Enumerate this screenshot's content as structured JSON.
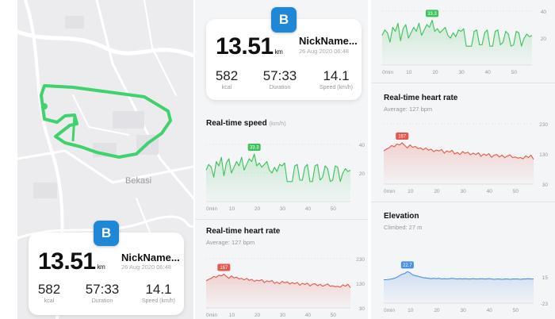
{
  "left": {
    "map_label": "Bekasi",
    "card": {
      "badge": "B",
      "distance": "13.51",
      "distance_unit": "km",
      "username": "NickName...",
      "date": "26 Aug 2020 06:48",
      "stats": [
        {
          "value": "582",
          "label": "kcal"
        },
        {
          "value": "57:33",
          "label": "Duration"
        },
        {
          "value": "14.1",
          "label": "Speed (km/h)"
        }
      ]
    },
    "heart_preview": {
      "title": "Real-time heart rate",
      "subtitle": "Average: 127 bpm"
    }
  },
  "middle": {
    "card": {
      "badge": "B",
      "distance": "13.51",
      "distance_unit": "km",
      "username": "NickName...",
      "date": "26 Aug 2020 06:48",
      "stats": [
        {
          "value": "582",
          "label": "kcal"
        },
        {
          "value": "57:33",
          "label": "Duration"
        },
        {
          "value": "14.1",
          "label": "Speed (km/h)"
        }
      ]
    },
    "speed": {
      "title": "Real-time speed",
      "unit": "(km/h)"
    },
    "heart": {
      "title": "Real-time heart rate",
      "subtitle": "Average: 127 bpm"
    }
  },
  "right": {
    "heart": {
      "title": "Real-time heart rate",
      "subtitle": "Average: 127 bpm"
    },
    "elevation": {
      "title": "Elevation",
      "subtitle": "Climbed: 27 m"
    }
  },
  "colors": {
    "speed": "#3cc25a",
    "heart": "#e5574a",
    "elevation": "#4a8fe0",
    "route": "#3fd36e",
    "badge": "#1f88d6"
  },
  "chart_data": [
    {
      "id": "speed",
      "type": "line",
      "title": "Real-time speed",
      "ylabel": "(km/h)",
      "x": [
        0,
        1,
        2,
        3,
        4,
        5,
        6,
        7,
        8,
        9,
        10,
        11,
        12,
        13,
        14,
        15,
        16,
        17,
        18,
        19,
        20,
        21,
        22,
        23,
        24,
        25,
        26,
        27,
        28,
        29,
        30,
        31,
        32,
        33,
        34,
        35,
        36,
        37,
        38,
        39,
        40,
        41,
        42,
        43,
        44,
        45,
        46,
        47,
        48,
        49,
        50,
        51,
        52,
        53,
        54,
        55,
        56,
        57
      ],
      "values": [
        22,
        26,
        24,
        17,
        28,
        25,
        31,
        18,
        27,
        30,
        20,
        24,
        28,
        25,
        31,
        22,
        26,
        30,
        28,
        33.3,
        25,
        27,
        24,
        26,
        28,
        22,
        20,
        24,
        21,
        26,
        25,
        27,
        14,
        14,
        14,
        25,
        26,
        15,
        15,
        24,
        26,
        14,
        14,
        25,
        26,
        15,
        17,
        25,
        23,
        14,
        15,
        25,
        24,
        14,
        20,
        23,
        21,
        22
      ],
      "peak_label": "33.3",
      "yticks": [
        40,
        20
      ],
      "ylim": [
        0,
        40
      ],
      "xticks": [
        "0min",
        "10",
        "20",
        "30",
        "40",
        "50"
      ],
      "grid": true
    },
    {
      "id": "heart",
      "type": "area",
      "title": "Real-time heart rate",
      "ylabel": "",
      "x": [
        0,
        1,
        2,
        3,
        4,
        5,
        6,
        7,
        8,
        9,
        10,
        11,
        12,
        13,
        14,
        15,
        16,
        17,
        18,
        19,
        20,
        21,
        22,
        23,
        24,
        25,
        26,
        27,
        28,
        29,
        30,
        31,
        32,
        33,
        34,
        35,
        36,
        37,
        38,
        39,
        40,
        41,
        42,
        43,
        44,
        45,
        46,
        47,
        48,
        49,
        50,
        51,
        52,
        53,
        54,
        55,
        56,
        57
      ],
      "values": [
        140,
        146,
        150,
        158,
        154,
        163,
        160,
        167,
        158,
        150,
        160,
        152,
        155,
        148,
        150,
        144,
        150,
        142,
        146,
        138,
        143,
        140,
        145,
        133,
        140,
        136,
        142,
        130,
        135,
        128,
        138,
        132,
        136,
        127,
        133,
        128,
        134,
        122,
        130,
        125,
        131,
        119,
        126,
        128,
        120,
        126,
        118,
        123,
        127,
        118,
        120,
        116,
        118,
        114,
        124,
        118,
        126,
        112
      ],
      "peak_label": "167",
      "yticks": [
        230,
        130,
        30
      ],
      "ylim": [
        30,
        230
      ],
      "xticks": [
        "0min",
        "10",
        "20",
        "30",
        "40",
        "50"
      ],
      "grid": true
    },
    {
      "id": "elevation",
      "type": "area",
      "title": "Elevation",
      "ylabel": "",
      "x": [
        0,
        1,
        2,
        3,
        4,
        5,
        6,
        7,
        8,
        9,
        10,
        11,
        12,
        13,
        14,
        15,
        16,
        17,
        18,
        19,
        20,
        21,
        22,
        23,
        24,
        25,
        26,
        27,
        28,
        29,
        30,
        31,
        32,
        33,
        34,
        35,
        36,
        37,
        38,
        39,
        40,
        41,
        42,
        43,
        44,
        45,
        46,
        47,
        48,
        49,
        50,
        51,
        52,
        53,
        54,
        55,
        56,
        57
      ],
      "values": [
        11,
        11,
        11.5,
        12,
        13,
        14.5,
        17,
        19,
        20,
        22.7,
        21,
        18,
        17,
        16,
        15,
        14,
        13.5,
        13,
        12.5,
        13,
        12.5,
        13,
        12,
        12.5,
        12,
        12.5,
        13,
        12.5,
        12,
        12.5,
        12,
        12.5,
        12,
        12,
        12.5,
        12,
        12,
        12.5,
        12,
        12,
        12.5,
        12,
        11.5,
        12,
        12,
        11.5,
        12,
        12,
        11.5,
        12,
        12,
        12,
        11.5,
        12,
        12,
        12.5,
        12,
        12
      ],
      "peak_label": "22.7",
      "yticks": [
        15,
        -23
      ],
      "ylim": [
        -23,
        53
      ],
      "xticks": [
        "0min",
        "10",
        "20",
        "30",
        "40",
        "50"
      ],
      "grid": true
    }
  ]
}
